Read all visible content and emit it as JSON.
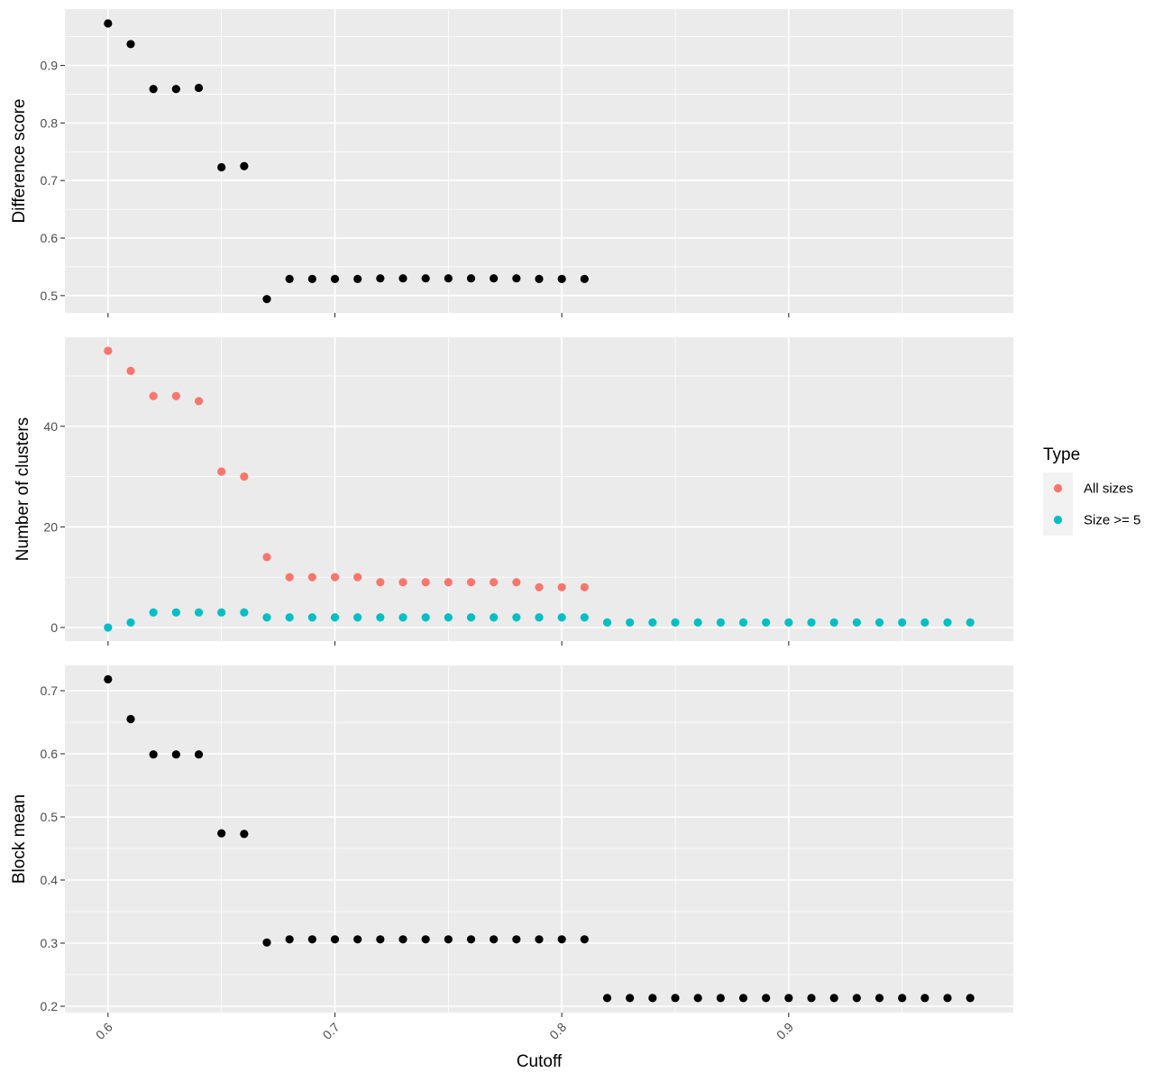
{
  "chart_data": {
    "type": "scatter",
    "xlabel": "Cutoff",
    "x_ticks": [
      "0.6",
      "0.7",
      "0.8",
      "0.9"
    ],
    "xlim": [
      0.581,
      0.999
    ],
    "panels": [
      {
        "ylabel": "Difference score",
        "ylim": [
          0.47,
          0.998
        ],
        "y_ticks": [
          0.5,
          0.6,
          0.7,
          0.8,
          0.9
        ],
        "y_tick_labels": [
          "0.5",
          "0.6",
          "0.7",
          "0.8",
          "0.9"
        ],
        "series": [
          {
            "color": "#000000",
            "points": [
              [
                0.6,
                0.973
              ],
              [
                0.61,
                0.937
              ],
              [
                0.62,
                0.859
              ],
              [
                0.63,
                0.859
              ],
              [
                0.64,
                0.861
              ],
              [
                0.65,
                0.723
              ],
              [
                0.66,
                0.725
              ],
              [
                0.67,
                0.494
              ],
              [
                0.68,
                0.529
              ],
              [
                0.69,
                0.529
              ],
              [
                0.7,
                0.529
              ],
              [
                0.71,
                0.529
              ],
              [
                0.72,
                0.53
              ],
              [
                0.73,
                0.53
              ],
              [
                0.74,
                0.53
              ],
              [
                0.75,
                0.53
              ],
              [
                0.76,
                0.53
              ],
              [
                0.77,
                0.53
              ],
              [
                0.78,
                0.53
              ],
              [
                0.79,
                0.529
              ],
              [
                0.8,
                0.529
              ],
              [
                0.81,
                0.529
              ]
            ]
          }
        ]
      },
      {
        "ylabel": "Number of clusters",
        "ylim": [
          -2.7,
          57.7
        ],
        "y_ticks": [
          0,
          20,
          40
        ],
        "y_tick_labels": [
          "0",
          "20",
          "40"
        ],
        "series": [
          {
            "name": "All sizes",
            "color": "#F8766D",
            "points": [
              [
                0.6,
                55
              ],
              [
                0.61,
                51
              ],
              [
                0.62,
                46
              ],
              [
                0.63,
                46
              ],
              [
                0.64,
                45
              ],
              [
                0.65,
                31
              ],
              [
                0.66,
                30
              ],
              [
                0.67,
                14
              ],
              [
                0.68,
                10
              ],
              [
                0.69,
                10
              ],
              [
                0.7,
                10
              ],
              [
                0.71,
                10
              ],
              [
                0.72,
                9
              ],
              [
                0.73,
                9
              ],
              [
                0.74,
                9
              ],
              [
                0.75,
                9
              ],
              [
                0.76,
                9
              ],
              [
                0.77,
                9
              ],
              [
                0.78,
                9
              ],
              [
                0.79,
                8
              ],
              [
                0.8,
                8
              ],
              [
                0.81,
                8
              ]
            ]
          },
          {
            "name": "Size >= 5",
            "color": "#00BFC4",
            "points": [
              [
                0.6,
                0
              ],
              [
                0.61,
                1
              ],
              [
                0.62,
                3
              ],
              [
                0.63,
                3
              ],
              [
                0.64,
                3
              ],
              [
                0.65,
                3
              ],
              [
                0.66,
                3
              ],
              [
                0.67,
                2
              ],
              [
                0.68,
                2
              ],
              [
                0.69,
                2
              ],
              [
                0.7,
                2
              ],
              [
                0.71,
                2
              ],
              [
                0.72,
                2
              ],
              [
                0.73,
                2
              ],
              [
                0.74,
                2
              ],
              [
                0.75,
                2
              ],
              [
                0.76,
                2
              ],
              [
                0.77,
                2
              ],
              [
                0.78,
                2
              ],
              [
                0.79,
                2
              ],
              [
                0.8,
                2
              ],
              [
                0.81,
                2
              ],
              [
                0.82,
                1
              ],
              [
                0.83,
                1
              ],
              [
                0.84,
                1
              ],
              [
                0.85,
                1
              ],
              [
                0.86,
                1
              ],
              [
                0.87,
                1
              ],
              [
                0.88,
                1
              ],
              [
                0.89,
                1
              ],
              [
                0.9,
                1
              ],
              [
                0.91,
                1
              ],
              [
                0.92,
                1
              ],
              [
                0.93,
                1
              ],
              [
                0.94,
                1
              ],
              [
                0.95,
                1
              ],
              [
                0.96,
                1
              ],
              [
                0.97,
                1
              ],
              [
                0.98,
                1
              ]
            ]
          }
        ]
      },
      {
        "ylabel": "Block mean",
        "ylim": [
          0.19,
          0.74
        ],
        "y_ticks": [
          0.2,
          0.3,
          0.4,
          0.5,
          0.6,
          0.7
        ],
        "y_tick_labels": [
          "0.2",
          "0.3",
          "0.4",
          "0.5",
          "0.6",
          "0.7"
        ],
        "series": [
          {
            "color": "#000000",
            "points": [
              [
                0.6,
                0.718
              ],
              [
                0.61,
                0.655
              ],
              [
                0.62,
                0.599
              ],
              [
                0.63,
                0.599
              ],
              [
                0.64,
                0.599
              ],
              [
                0.65,
                0.474
              ],
              [
                0.66,
                0.473
              ],
              [
                0.67,
                0.301
              ],
              [
                0.68,
                0.306
              ],
              [
                0.69,
                0.306
              ],
              [
                0.7,
                0.306
              ],
              [
                0.71,
                0.306
              ],
              [
                0.72,
                0.306
              ],
              [
                0.73,
                0.306
              ],
              [
                0.74,
                0.306
              ],
              [
                0.75,
                0.306
              ],
              [
                0.76,
                0.306
              ],
              [
                0.77,
                0.306
              ],
              [
                0.78,
                0.306
              ],
              [
                0.79,
                0.306
              ],
              [
                0.8,
                0.306
              ],
              [
                0.81,
                0.306
              ],
              [
                0.82,
                0.213
              ],
              [
                0.83,
                0.213
              ],
              [
                0.84,
                0.213
              ],
              [
                0.85,
                0.213
              ],
              [
                0.86,
                0.213
              ],
              [
                0.87,
                0.213
              ],
              [
                0.88,
                0.213
              ],
              [
                0.89,
                0.213
              ],
              [
                0.9,
                0.213
              ],
              [
                0.91,
                0.213
              ],
              [
                0.92,
                0.213
              ],
              [
                0.93,
                0.213
              ],
              [
                0.94,
                0.213
              ],
              [
                0.95,
                0.213
              ],
              [
                0.96,
                0.213
              ],
              [
                0.97,
                0.213
              ],
              [
                0.98,
                0.213
              ]
            ]
          }
        ]
      }
    ],
    "legend": {
      "title": "Type",
      "position": "right",
      "items": [
        {
          "label": "All sizes",
          "color": "#F8766D"
        },
        {
          "label": "Size >= 5",
          "color": "#00BFC4"
        }
      ]
    }
  }
}
